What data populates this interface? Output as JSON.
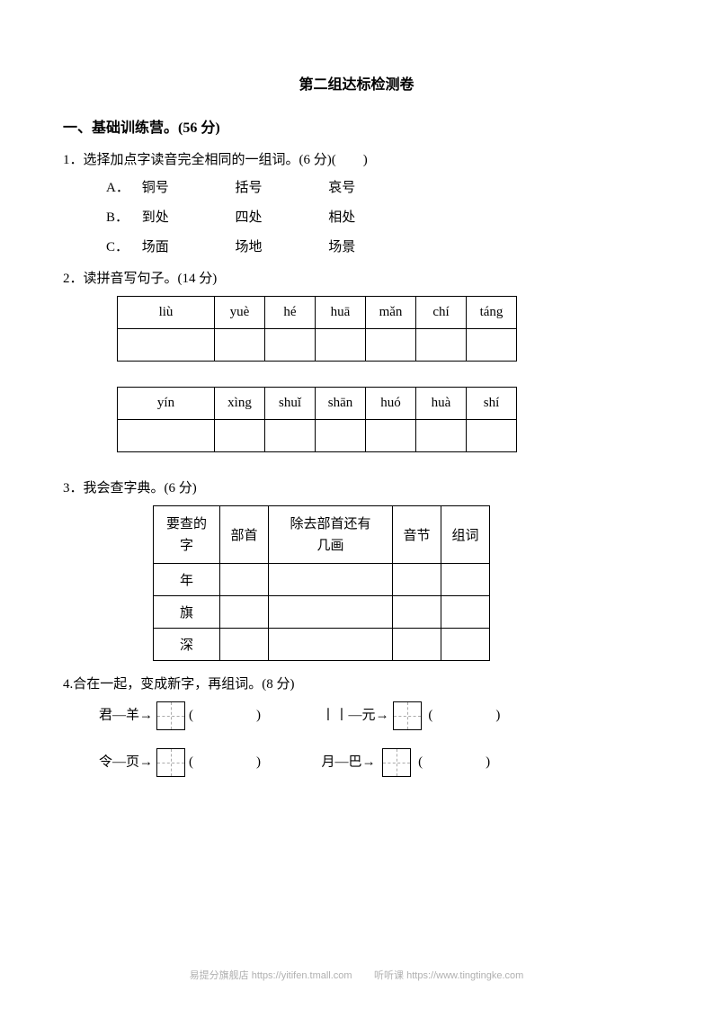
{
  "title": "第二组达标检测卷",
  "section1": {
    "heading": "一、基础训练营。(56 分)",
    "q1": {
      "text": "1．选择加点字读音完全相同的一组词。(6 分)(　　)",
      "options": [
        {
          "label": "A．",
          "w1": "铜号",
          "w2": "括号",
          "w3": "哀号"
        },
        {
          "label": "B．",
          "w1": "到处",
          "w2": "四处",
          "w3": "相处"
        },
        {
          "label": "C．",
          "w1": "场面",
          "w2": "场地",
          "w3": "场景"
        }
      ]
    },
    "q2": {
      "text": "2．读拼音写句子。(14 分)",
      "row1": [
        "liù",
        "yuè",
        "hé",
        "huā",
        "mǎn",
        "chí",
        "táng"
      ],
      "row2": [
        "yín",
        "xìng",
        "shuǐ",
        "shān",
        "huó",
        "huà",
        "shí"
      ]
    },
    "q3": {
      "text": "3．我会查字典。(6 分)",
      "headers": [
        "要查的字",
        "部首",
        "除去部首还有几画",
        "音节",
        "组词"
      ],
      "rows": [
        "年",
        "旗",
        "深"
      ]
    },
    "q4": {
      "text": "4.合在一起，变成新字，再组词。(8 分)",
      "items": [
        {
          "a": "君",
          "b": "羊"
        },
        {
          "a": "丨丨",
          "b": "元"
        },
        {
          "a": "令",
          "b": "页"
        },
        {
          "a": "月",
          "b": "巴"
        }
      ]
    }
  },
  "footer": {
    "left": "易提分旗舰店 https://yitifen.tmall.com",
    "right": "听听课 https://www.tingtingke.com"
  }
}
